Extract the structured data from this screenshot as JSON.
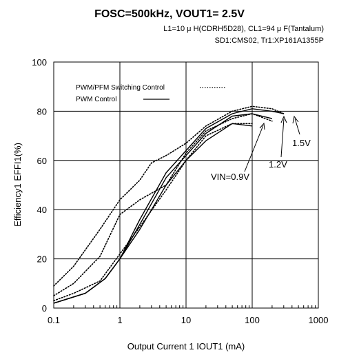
{
  "chart_data": {
    "type": "line",
    "title": "FOSC=500kHz, VOUT1= 2.5V",
    "subtitle_lines": [
      "L1=10 μ H(CDRH5D28), CL1=94 μ F(Tantalum)",
      "SD1:CMS02, Tr1:XP161A1355P"
    ],
    "xlabel": "Output Current 1 IOUT1 (mA)",
    "ylabel": "Efficiency1 EFFI1(%)",
    "x_scale": "log",
    "xlim": [
      0.1,
      1000
    ],
    "ylim": [
      0,
      100
    ],
    "x_ticks": [
      "0.1",
      "1",
      "10",
      "100",
      "1000"
    ],
    "y_ticks": [
      "0",
      "20",
      "40",
      "60",
      "80",
      "100"
    ],
    "grid": true,
    "legend": {
      "placement": "top-left",
      "entries": [
        {
          "label": "PWM/PFM Switching Control",
          "style": "dotted"
        },
        {
          "label": "PWM Control",
          "style": "solid"
        }
      ]
    },
    "series": [
      {
        "style": "solid",
        "vin": "0.9V",
        "x": [
          0.1,
          0.3,
          0.6,
          1,
          2,
          5,
          10,
          20,
          50,
          100
        ],
        "y": [
          2,
          6,
          12,
          20,
          32,
          50,
          60,
          68,
          75,
          74
        ]
      },
      {
        "style": "solid",
        "vin": "1.2V",
        "x": [
          0.1,
          0.3,
          0.6,
          1,
          2,
          5,
          10,
          20,
          50,
          100,
          200
        ],
        "y": [
          2,
          6,
          12,
          20,
          34,
          53,
          62,
          71,
          78,
          79,
          77
        ]
      },
      {
        "style": "solid",
        "vin": "1.5V",
        "x": [
          0.1,
          0.3,
          0.6,
          1,
          2,
          5,
          10,
          20,
          50,
          100,
          200,
          300
        ],
        "y": [
          2,
          6,
          12,
          20,
          36,
          55,
          64,
          73,
          79,
          81,
          80,
          79
        ]
      },
      {
        "style": "dotted",
        "vin": "0.9V",
        "x": [
          0.1,
          0.2,
          0.5,
          1,
          2,
          5,
          10,
          20,
          50,
          100
        ],
        "y": [
          3,
          6,
          11,
          22,
          33,
          48,
          60,
          70,
          75,
          75
        ]
      },
      {
        "style": "dotted",
        "vin": "1.2V",
        "x": [
          0.1,
          0.2,
          0.5,
          1,
          2,
          5,
          10,
          20,
          50,
          100,
          200
        ],
        "y": [
          5,
          10,
          21,
          38,
          44,
          50,
          63,
          72,
          77,
          79,
          76
        ]
      },
      {
        "style": "dotted",
        "vin": "1.5V",
        "x": [
          0.1,
          0.2,
          0.5,
          1,
          2,
          3,
          5,
          10,
          20,
          50,
          100,
          200,
          300
        ],
        "y": [
          9,
          17,
          32,
          44,
          52,
          59,
          62,
          67,
          74,
          80,
          82,
          81,
          79
        ]
      }
    ],
    "annotations": [
      {
        "label": "VIN=0.9V",
        "x": 100,
        "y": 74
      },
      {
        "label": "1.2V",
        "x": 200,
        "y": 77
      },
      {
        "label": "1.5V",
        "x": 300,
        "y": 79
      }
    ]
  }
}
